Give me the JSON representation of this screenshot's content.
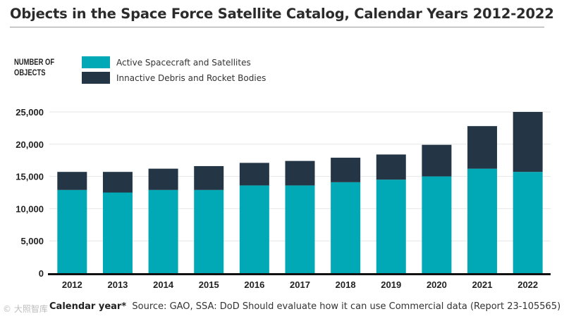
{
  "chart_data": {
    "type": "bar",
    "stacked": true,
    "title": "Objects in the Space Force Satellite Catalog, Calendar Years 2012-2022",
    "ylabel": "NUMBER OF\nOBJECTS",
    "xlabel": "Calendar year*",
    "categories": [
      "2012",
      "2013",
      "2014",
      "2015",
      "2016",
      "2017",
      "2018",
      "2019",
      "2020",
      "2021",
      "2022"
    ],
    "series": [
      {
        "name": "Active Spacecraft and Satellites",
        "color": "#00a9b5",
        "values": [
          12900,
          12500,
          12900,
          12900,
          13600,
          13600,
          14100,
          14500,
          15000,
          16200,
          15700
        ]
      },
      {
        "name": "Innactive Debris and Rocket Bodies",
        "color": "#243545",
        "values": [
          2800,
          3200,
          3300,
          3700,
          3500,
          3800,
          3800,
          3900,
          4900,
          6600,
          9300
        ]
      }
    ],
    "ylim": [
      0,
      25000
    ],
    "yticks": [
      0,
      5000,
      10000,
      15000,
      20000,
      25000
    ],
    "ytick_labels": [
      "0",
      "5,000",
      "10,000",
      "15,000",
      "20,000",
      "25,000"
    ],
    "grid": true,
    "legend": "top-left"
  },
  "source_text": "Source: GAO, SSA: DoD Should evaluate how it can use Commercial data (Report 23-105565)",
  "watermark_text": "© 大照智库"
}
